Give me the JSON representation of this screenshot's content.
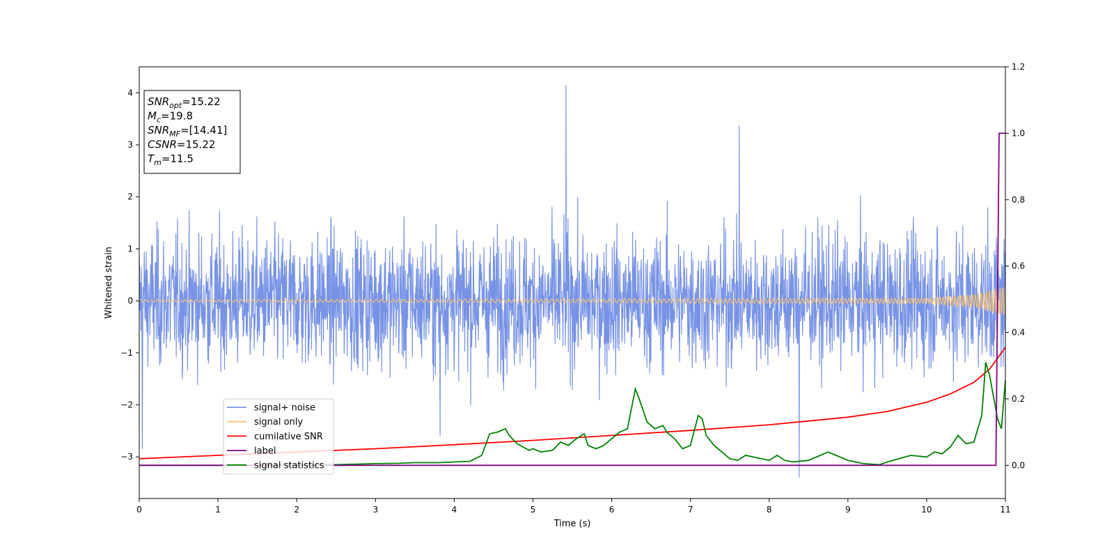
{
  "chart_data": {
    "type": "line",
    "xlabel": "Time (s)",
    "ylabel_left": "Whitened strain",
    "ylabel_right": "",
    "xlim": [
      0,
      11
    ],
    "ylim_left": [
      -3.8,
      4.5
    ],
    "ylim_right": [
      -0.1,
      1.2
    ],
    "x_ticks": [
      "0",
      "1",
      "2",
      "3",
      "4",
      "5",
      "6",
      "7",
      "8",
      "9",
      "10",
      "11"
    ],
    "y_ticks_left": [
      "−3",
      "−2",
      "−1",
      "0",
      "1",
      "2",
      "3",
      "4"
    ],
    "y_ticks_right": [
      "0.0",
      "0.2",
      "0.4",
      "0.6",
      "0.8",
      "1.0",
      "1.2"
    ],
    "grid": false,
    "legend_placement": "lower-left",
    "annotation": [
      {
        "base": "SNR",
        "sub": "opt",
        "value": "=15.22"
      },
      {
        "base": "M",
        "sub": "c",
        "value": "=19.8"
      },
      {
        "base": "SNR",
        "sub": "MF",
        "value": "=[14.41]"
      },
      {
        "base": "CSNR",
        "sub": "",
        "value": "=15.22"
      },
      {
        "base": "T",
        "sub": "m",
        "value": "=11.5"
      }
    ],
    "series": [
      {
        "name": "signal+ noise",
        "color": "#7893e6",
        "axis": "left",
        "noise_band": [
          -1.5,
          1.5
        ],
        "notable_peaks": [
          [
            5.42,
            4.15
          ],
          [
            7.62,
            3.37
          ],
          [
            8.38,
            -3.4
          ],
          [
            0.04,
            -2.85
          ],
          [
            3.82,
            -2.6
          ]
        ]
      },
      {
        "name": "signal only",
        "color": "#f5c27a",
        "axis": "left",
        "amplitude": [
          [
            0,
            0.02
          ],
          [
            10,
            0.05
          ],
          [
            10.6,
            0.12
          ],
          [
            11,
            0.28
          ]
        ]
      },
      {
        "name": "cumilative SNR",
        "color": "#ff0000",
        "axis": "right",
        "x": [
          0,
          1,
          2,
          3,
          4,
          5,
          6,
          7,
          8,
          9,
          9.5,
          10,
          10.3,
          10.6,
          10.8,
          11
        ],
        "y": [
          0.02,
          0.03,
          0.04,
          0.05,
          0.062,
          0.075,
          0.09,
          0.105,
          0.122,
          0.145,
          0.162,
          0.19,
          0.215,
          0.25,
          0.29,
          0.355
        ]
      },
      {
        "name": "label",
        "color": "#800080",
        "axis": "right",
        "x": [
          0,
          10.88,
          10.9,
          10.92,
          11
        ],
        "y": [
          0,
          0,
          0.5,
          1.0,
          1.0
        ]
      },
      {
        "name": "signal statistics",
        "color": "#008000",
        "axis": "right",
        "x": [
          0,
          1,
          2,
          2.5,
          3,
          3.3,
          3.5,
          3.8,
          4.0,
          4.2,
          4.35,
          4.45,
          4.55,
          4.65,
          4.7,
          4.8,
          4.95,
          5.0,
          5.1,
          5.25,
          5.35,
          5.45,
          5.55,
          5.65,
          5.7,
          5.8,
          5.9,
          6.0,
          6.1,
          6.2,
          6.3,
          6.35,
          6.45,
          6.55,
          6.65,
          6.7,
          6.8,
          6.9,
          7.0,
          7.1,
          7.15,
          7.2,
          7.3,
          7.5,
          7.6,
          7.7,
          7.8,
          7.9,
          8.0,
          8.1,
          8.2,
          8.3,
          8.5,
          8.65,
          8.75,
          8.85,
          9.0,
          9.2,
          9.4,
          9.5,
          9.65,
          9.8,
          10.0,
          10.1,
          10.2,
          10.3,
          10.4,
          10.5,
          10.6,
          10.7,
          10.75,
          10.8,
          10.9,
          10.95,
          11
        ],
        "y": [
          0,
          0,
          0.001,
          0.002,
          0.005,
          0.006,
          0.008,
          0.008,
          0.01,
          0.012,
          0.03,
          0.095,
          0.1,
          0.11,
          0.09,
          0.065,
          0.045,
          0.05,
          0.04,
          0.045,
          0.07,
          0.06,
          0.08,
          0.095,
          0.06,
          0.05,
          0.06,
          0.08,
          0.1,
          0.11,
          0.23,
          0.2,
          0.13,
          0.11,
          0.12,
          0.1,
          0.08,
          0.05,
          0.06,
          0.15,
          0.14,
          0.09,
          0.06,
          0.02,
          0.015,
          0.03,
          0.025,
          0.02,
          0.015,
          0.03,
          0.015,
          0.01,
          0.015,
          0.03,
          0.04,
          0.03,
          0.015,
          0.005,
          0.002,
          0.01,
          0.02,
          0.03,
          0.025,
          0.04,
          0.035,
          0.055,
          0.09,
          0.065,
          0.07,
          0.15,
          0.31,
          0.27,
          0.14,
          0.11,
          0.255
        ]
      }
    ]
  }
}
